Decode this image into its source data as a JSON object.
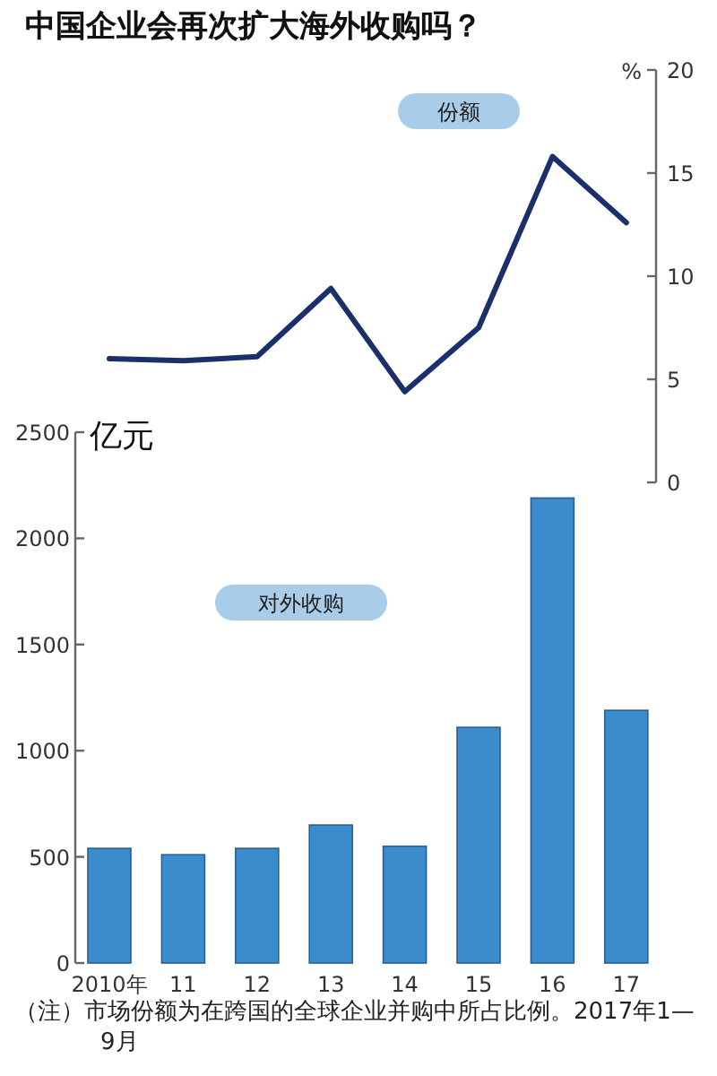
{
  "chart_data": [
    {
      "type": "line",
      "title": "中国企业会再次扩大海外收购吗？",
      "ylabel": "%",
      "categories": [
        null,
        null,
        null,
        null,
        null,
        null,
        null,
        null
      ],
      "tick_labels": "y",
      "ylim": [
        0,
        20
      ],
      "yticks": [
        0,
        5,
        10,
        15,
        20
      ],
      "grid": false,
      "legend": false,
      "marker": "none",
      "line_style": "solid",
      "series": [
        {
          "name": "份额",
          "color": "#1b2f6b",
          "values": [
            6.0,
            5.9,
            6.1,
            9.4,
            4.4,
            7.5,
            15.8,
            12.6
          ]
        }
      ]
    },
    {
      "type": "bar",
      "ylabel": "亿元",
      "categories": [
        "2010年",
        "11",
        "12",
        "13",
        "14",
        "15",
        "16",
        "17"
      ],
      "ylim": [
        0,
        2500
      ],
      "yticks": [
        0,
        500,
        1000,
        1500,
        2000,
        2500
      ],
      "grid": false,
      "legend": false,
      "series": [
        {
          "name": "对外收购",
          "color": "#3a8ccd",
          "values": [
            540,
            510,
            540,
            650,
            550,
            1110,
            2190,
            1190
          ]
        }
      ],
      "annotations": [
        "（注）市场份额为在跨国的全球企业并购中所占比例。2017年1—9月"
      ]
    }
  ]
}
